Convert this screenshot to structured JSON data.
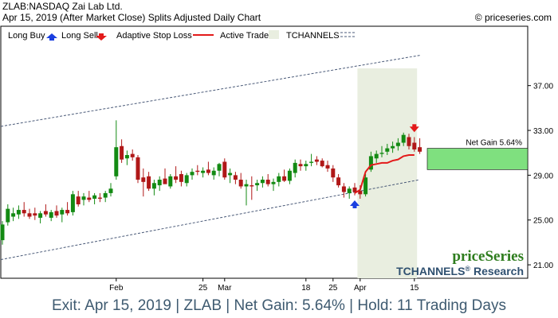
{
  "header": {
    "line1": "ZLAB:NASDAQ Zai Lab Ltd.",
    "line2": "Apr 15, 2019 (After Market Close)  Splits Adjusted Daily Chart",
    "credit": "© priceseries.com"
  },
  "legend": {
    "long_buy": "Long Buy",
    "long_sell": "Long Sell",
    "stop": "Adaptive Stop Loss",
    "active": "Active Trade",
    "channels": "TCHANNELS"
  },
  "colors": {
    "up": "#138a13",
    "down": "#b01818",
    "stop": "#e31a1a",
    "buy_arrow": "#1a3fe0",
    "sell_arrow": "#e31a1a",
    "active_zone": "#e9eee0",
    "gain_box": "#7fe07f",
    "channel": "#4a5a78",
    "footer_text": "#3e5a70"
  },
  "chart_data": {
    "type": "candlestick",
    "ylim": [
      19.8,
      42.3
    ],
    "yticks": [
      21,
      25,
      29,
      33,
      37
    ],
    "ytick_labels": [
      "21.00",
      "25.00",
      "29.00",
      "33.00",
      "37.00"
    ],
    "xtick_labels": [
      {
        "label": "Feb",
        "index": 21
      },
      {
        "label": "25",
        "index": 37
      },
      {
        "label": "Mar",
        "index": 41
      },
      {
        "label": "18",
        "index": 56
      },
      {
        "label": "25",
        "index": 61
      },
      {
        "label": "Apr",
        "index": 66
      },
      {
        "label": "15",
        "index": 76
      }
    ],
    "candles": [
      {
        "o": 23.2,
        "h": 24.9,
        "l": 22.8,
        "c": 24.6
      },
      {
        "o": 24.8,
        "h": 26.4,
        "l": 24.5,
        "c": 26.0
      },
      {
        "o": 25.3,
        "h": 26.1,
        "l": 24.9,
        "c": 25.6
      },
      {
        "o": 25.5,
        "h": 26.3,
        "l": 25.1,
        "c": 25.9
      },
      {
        "o": 25.9,
        "h": 26.6,
        "l": 25.3,
        "c": 25.6
      },
      {
        "o": 25.6,
        "h": 26.0,
        "l": 25.1,
        "c": 25.3
      },
      {
        "o": 25.6,
        "h": 26.1,
        "l": 25.0,
        "c": 25.4
      },
      {
        "o": 25.2,
        "h": 25.8,
        "l": 24.7,
        "c": 25.6
      },
      {
        "o": 25.8,
        "h": 26.4,
        "l": 25.3,
        "c": 25.5
      },
      {
        "o": 25.2,
        "h": 25.9,
        "l": 24.9,
        "c": 25.7
      },
      {
        "o": 25.8,
        "h": 26.3,
        "l": 25.2,
        "c": 25.4
      },
      {
        "o": 25.5,
        "h": 26.1,
        "l": 24.8,
        "c": 25.9
      },
      {
        "o": 25.9,
        "h": 26.6,
        "l": 25.4,
        "c": 25.6
      },
      {
        "o": 25.7,
        "h": 27.6,
        "l": 25.4,
        "c": 27.3
      },
      {
        "o": 27.1,
        "h": 27.6,
        "l": 26.2,
        "c": 26.4
      },
      {
        "o": 26.8,
        "h": 27.4,
        "l": 26.3,
        "c": 27.1
      },
      {
        "o": 27.0,
        "h": 27.6,
        "l": 26.6,
        "c": 26.8
      },
      {
        "o": 26.9,
        "h": 27.4,
        "l": 26.4,
        "c": 27.2
      },
      {
        "o": 27.0,
        "h": 27.4,
        "l": 26.6,
        "c": 26.9
      },
      {
        "o": 27.0,
        "h": 27.6,
        "l": 26.6,
        "c": 27.4
      },
      {
        "o": 27.4,
        "h": 28.3,
        "l": 27.1,
        "c": 27.8
      },
      {
        "o": 28.9,
        "h": 33.9,
        "l": 28.6,
        "c": 31.5
      },
      {
        "o": 31.6,
        "h": 32.2,
        "l": 30.1,
        "c": 30.4
      },
      {
        "o": 30.5,
        "h": 31.2,
        "l": 29.9,
        "c": 30.8
      },
      {
        "o": 30.9,
        "h": 31.3,
        "l": 30.3,
        "c": 30.6
      },
      {
        "o": 30.6,
        "h": 30.8,
        "l": 28.3,
        "c": 28.6
      },
      {
        "o": 28.8,
        "h": 29.6,
        "l": 27.1,
        "c": 28.4
      },
      {
        "o": 28.9,
        "h": 29.3,
        "l": 27.6,
        "c": 27.8
      },
      {
        "o": 27.8,
        "h": 28.6,
        "l": 27.2,
        "c": 28.3
      },
      {
        "o": 28.1,
        "h": 28.9,
        "l": 27.6,
        "c": 28.6
      },
      {
        "o": 28.7,
        "h": 29.6,
        "l": 28.3,
        "c": 28.2
      },
      {
        "o": 28.0,
        "h": 29.1,
        "l": 27.8,
        "c": 28.9
      },
      {
        "o": 28.9,
        "h": 29.8,
        "l": 28.3,
        "c": 28.6
      },
      {
        "o": 29.1,
        "h": 29.4,
        "l": 28.0,
        "c": 28.4
      },
      {
        "o": 28.3,
        "h": 29.2,
        "l": 28.0,
        "c": 29.0
      },
      {
        "o": 29.0,
        "h": 29.6,
        "l": 28.6,
        "c": 29.3
      },
      {
        "o": 29.4,
        "h": 29.9,
        "l": 29.0,
        "c": 29.3
      },
      {
        "o": 29.2,
        "h": 29.7,
        "l": 28.8,
        "c": 29.4
      },
      {
        "o": 29.5,
        "h": 30.2,
        "l": 29.0,
        "c": 29.2
      },
      {
        "o": 29.0,
        "h": 29.7,
        "l": 28.6,
        "c": 29.4
      },
      {
        "o": 29.4,
        "h": 30.1,
        "l": 28.9,
        "c": 30.0
      },
      {
        "o": 30.2,
        "h": 30.5,
        "l": 28.6,
        "c": 28.8
      },
      {
        "o": 29.0,
        "h": 29.6,
        "l": 28.3,
        "c": 29.2
      },
      {
        "o": 29.0,
        "h": 29.3,
        "l": 28.2,
        "c": 28.6
      },
      {
        "o": 28.6,
        "h": 29.2,
        "l": 27.8,
        "c": 28.0
      },
      {
        "o": 28.0,
        "h": 28.6,
        "l": 26.3,
        "c": 28.2
      },
      {
        "o": 28.1,
        "h": 28.9,
        "l": 26.8,
        "c": 28.0
      },
      {
        "o": 28.1,
        "h": 28.6,
        "l": 27.6,
        "c": 28.3
      },
      {
        "o": 28.3,
        "h": 28.9,
        "l": 27.9,
        "c": 28.6
      },
      {
        "o": 28.6,
        "h": 29.1,
        "l": 28.0,
        "c": 28.2
      },
      {
        "o": 28.2,
        "h": 28.7,
        "l": 27.6,
        "c": 28.4
      },
      {
        "o": 28.4,
        "h": 29.2,
        "l": 28.0,
        "c": 28.9
      },
      {
        "o": 28.9,
        "h": 29.5,
        "l": 28.4,
        "c": 28.5
      },
      {
        "o": 28.5,
        "h": 29.6,
        "l": 28.2,
        "c": 29.4
      },
      {
        "o": 29.2,
        "h": 30.4,
        "l": 28.8,
        "c": 30.1
      },
      {
        "o": 30.0,
        "h": 30.4,
        "l": 29.4,
        "c": 29.8
      },
      {
        "o": 29.8,
        "h": 30.3,
        "l": 29.4,
        "c": 30.0
      },
      {
        "o": 30.1,
        "h": 30.9,
        "l": 29.8,
        "c": 30.2
      },
      {
        "o": 30.4,
        "h": 30.7,
        "l": 29.9,
        "c": 30.2
      },
      {
        "o": 30.3,
        "h": 30.5,
        "l": 29.7,
        "c": 29.8
      },
      {
        "o": 29.9,
        "h": 30.3,
        "l": 29.3,
        "c": 29.6
      },
      {
        "o": 29.6,
        "h": 29.9,
        "l": 28.4,
        "c": 28.8
      },
      {
        "o": 28.8,
        "h": 29.1,
        "l": 27.9,
        "c": 28.1
      },
      {
        "o": 28.0,
        "h": 28.3,
        "l": 27.0,
        "c": 27.5
      },
      {
        "o": 27.4,
        "h": 28.0,
        "l": 26.9,
        "c": 27.8
      },
      {
        "o": 27.9,
        "h": 28.3,
        "l": 27.2,
        "c": 27.5
      },
      {
        "o": 27.6,
        "h": 28.1,
        "l": 26.9,
        "c": 27.3
      },
      {
        "o": 27.3,
        "h": 29.1,
        "l": 27.1,
        "c": 28.8
      },
      {
        "o": 29.5,
        "h": 31.1,
        "l": 29.3,
        "c": 30.7
      },
      {
        "o": 30.5,
        "h": 31.2,
        "l": 30.1,
        "c": 30.9
      },
      {
        "o": 30.9,
        "h": 31.6,
        "l": 30.6,
        "c": 31.0
      },
      {
        "o": 31.1,
        "h": 31.8,
        "l": 30.8,
        "c": 31.4
      },
      {
        "o": 31.4,
        "h": 32.0,
        "l": 31.0,
        "c": 31.6
      },
      {
        "o": 31.6,
        "h": 32.3,
        "l": 31.2,
        "c": 31.9
      },
      {
        "o": 31.9,
        "h": 32.8,
        "l": 31.6,
        "c": 32.6
      },
      {
        "o": 32.4,
        "h": 32.7,
        "l": 31.3,
        "c": 31.6
      },
      {
        "o": 31.9,
        "h": 32.4,
        "l": 31.1,
        "c": 31.3
      },
      {
        "o": 31.5,
        "h": 32.3,
        "l": 30.9,
        "c": 31.1
      }
    ],
    "stop_loss": [
      {
        "i": 65,
        "v": 27.4
      },
      {
        "i": 66,
        "v": 27.7
      },
      {
        "i": 67,
        "v": 29.3
      },
      {
        "i": 68,
        "v": 29.9
      },
      {
        "i": 69,
        "v": 30.0
      },
      {
        "i": 70,
        "v": 30.1
      },
      {
        "i": 71,
        "v": 30.1
      },
      {
        "i": 72,
        "v": 30.3
      },
      {
        "i": 73,
        "v": 30.4
      },
      {
        "i": 74,
        "v": 30.7
      },
      {
        "i": 75,
        "v": 30.8
      },
      {
        "i": 76,
        "v": 30.8
      }
    ],
    "active_trade": {
      "start": 65.5,
      "end": 76.5
    },
    "channel_upper": {
      "x1": -1,
      "y1": 33.3,
      "x2": 77,
      "y2": 39.7
    },
    "channel_lower": {
      "x1": -1,
      "y1": 21.4,
      "x2": 77,
      "y2": 28.6
    },
    "buy_signal": {
      "index": 65,
      "value": 26.4
    },
    "sell_signal": {
      "index": 76,
      "value": 33.2
    },
    "net_gain": {
      "label": "Net Gain 5.64%",
      "from": 29.5,
      "to": 31.4
    }
  },
  "branding": {
    "logo": "priceSeries",
    "research": "TCHANNELS",
    "research_mark": "®",
    "research_suffix": " Research"
  },
  "footer": "Exit: Apr 15, 2019 | ZLAB | Net Gain: 5.64% | Hold: 11 Trading Days"
}
